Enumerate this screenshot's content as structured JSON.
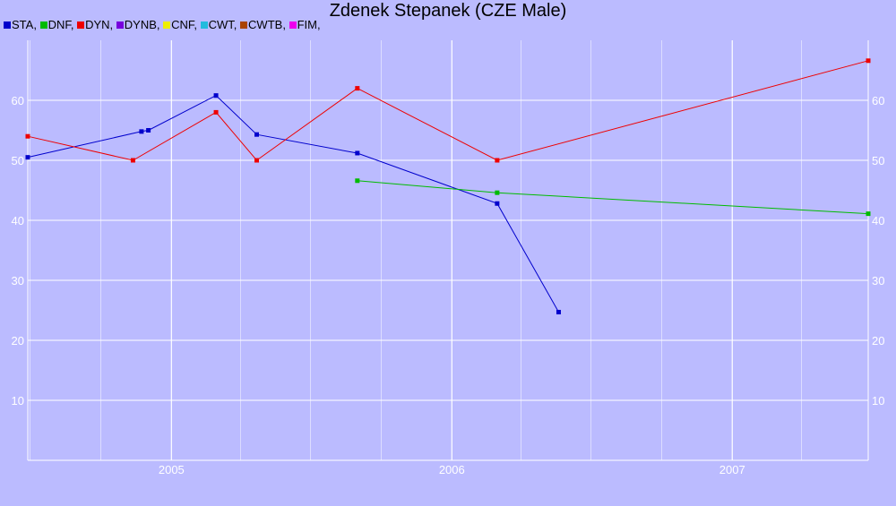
{
  "chart_data": {
    "type": "line",
    "title": "Zdenek Stepanek (CZE Male)",
    "xlabel": "",
    "ylabel": "",
    "xlim": [
      "2004-06-28",
      "2007-06-27"
    ],
    "ylim": [
      0,
      70
    ],
    "x_ticks": [
      "2005",
      "2006",
      "2007"
    ],
    "x_tick_dates": [
      "2005-01-01",
      "2006-01-01",
      "2007-01-01"
    ],
    "y_ticks": [
      10,
      20,
      30,
      40,
      50,
      60
    ],
    "grid": true,
    "legend": [
      {
        "label": "STA,",
        "color": "#0000cc"
      },
      {
        "label": "DNF,",
        "color": "#00bb00"
      },
      {
        "label": "DYN,",
        "color": "#ee0000"
      },
      {
        "label": "DYNB,",
        "color": "#7700dd"
      },
      {
        "label": "CNF,",
        "color": "#eeee00"
      },
      {
        "label": "CWT,",
        "color": "#22bbdd"
      },
      {
        "label": "CWTB,",
        "color": "#aa4400"
      },
      {
        "label": "FIM,",
        "color": "#ee00ee"
      }
    ],
    "series": [
      {
        "name": "STA",
        "color": "#0000cc",
        "points": [
          {
            "x": "2004-06-28",
            "y": 50.5
          },
          {
            "x": "2004-11-23",
            "y": 54.8
          },
          {
            "x": "2004-12-02",
            "y": 55.0
          },
          {
            "x": "2005-02-28",
            "y": 60.8
          },
          {
            "x": "2005-04-22",
            "y": 54.3
          },
          {
            "x": "2005-08-31",
            "y": 51.2
          },
          {
            "x": "2006-03-01",
            "y": 42.8
          },
          {
            "x": "2006-05-20",
            "y": 24.7
          }
        ]
      },
      {
        "name": "DNF",
        "color": "#00bb00",
        "points": [
          {
            "x": "2005-08-31",
            "y": 46.6
          },
          {
            "x": "2006-03-01",
            "y": 44.6
          },
          {
            "x": "2007-06-27",
            "y": 41.1
          }
        ]
      },
      {
        "name": "DYN",
        "color": "#ee0000",
        "points": [
          {
            "x": "2004-06-28",
            "y": 54.0
          },
          {
            "x": "2004-11-12",
            "y": 50.0
          },
          {
            "x": "2005-02-28",
            "y": 58.0
          },
          {
            "x": "2005-04-22",
            "y": 50.0
          },
          {
            "x": "2005-08-31",
            "y": 62.0
          },
          {
            "x": "2006-03-01",
            "y": 50.0
          },
          {
            "x": "2007-06-27",
            "y": 66.6
          }
        ]
      }
    ]
  }
}
